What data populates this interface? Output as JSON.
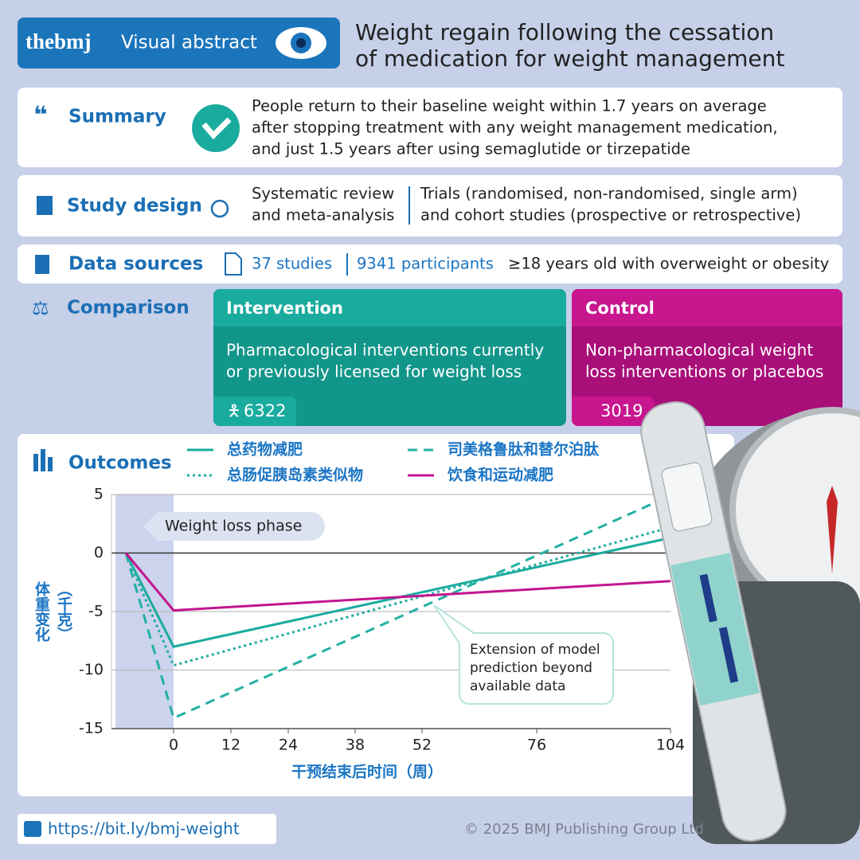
{
  "header": {
    "brand": "thebmj",
    "label": "Visual abstract",
    "title_lines": [
      "Weight regain following the cessation",
      "of medication for weight management"
    ]
  },
  "summary": {
    "heading": "Summary",
    "text_lines": [
      "People return to their baseline weight within 1.7 years on average",
      "after stopping treatment with any weight management medication,",
      "and just 1.5 years after using semaglutide or tirzepatide"
    ]
  },
  "study_design": {
    "heading": "Study design",
    "design_lines": [
      "Systematic review",
      "and meta-analysis"
    ],
    "trials_lines": [
      "Trials (randomised, non-randomised, single arm)",
      "and cohort studies (prospective or retrospective)"
    ]
  },
  "data_sources": {
    "heading": "Data sources",
    "studies": "37 studies",
    "participants": "9341 participants",
    "population": "≥18 years old with overweight or obesity"
  },
  "comparison": {
    "heading": "Comparison",
    "intervention": {
      "label": "Intervention",
      "text_lines": [
        "Pharmacological interventions currently",
        "or previously licensed for weight loss"
      ],
      "n": 6322
    },
    "control": {
      "label": "Control",
      "text_lines": [
        "Non-pharmacological weight",
        "loss interventions or placebos"
      ],
      "n": 3019
    }
  },
  "outcomes_heading": "Outcomes",
  "chart_data": {
    "type": "line",
    "x_label": "干预结束后时间（周）",
    "y_label_lines": [
      "体重变化",
      "（千克）"
    ],
    "x": [
      -10,
      0,
      104
    ],
    "series": [
      {
        "name": "总药物减肥",
        "color": "#1aab9f",
        "dash": "solid",
        "values": [
          0,
          -8,
          1.3
        ]
      },
      {
        "name": "总肠促胰岛素类似物",
        "color": "#1aab9f",
        "dash": "dotted",
        "values": [
          0,
          -9.6,
          2.2
        ]
      },
      {
        "name": "司美格鲁肽和替尔泊肽",
        "color": "#22b0a4",
        "dash": "dashed",
        "values": [
          0,
          -14.1,
          4.9
        ]
      },
      {
        "name": "饮食和运动减肥",
        "color": "#c2168d",
        "dash": "solid",
        "values": [
          0,
          -4.9,
          -2.4
        ]
      }
    ],
    "xlim": [
      -13,
      104
    ],
    "ylim": [
      -15,
      5
    ],
    "xticks": [
      0,
      12,
      24,
      38,
      52,
      76,
      104
    ],
    "yticks": [
      5,
      0,
      -5,
      -10,
      -15
    ],
    "grid": true,
    "phase_label": "Weight loss phase",
    "extension_note_lines": [
      "Extension of model",
      "prediction beyond",
      "available data"
    ]
  },
  "footer": {
    "url": "https://bit.ly/bmj-weight",
    "copyright": "© 2025 BMJ Publishing Group Ltd"
  }
}
